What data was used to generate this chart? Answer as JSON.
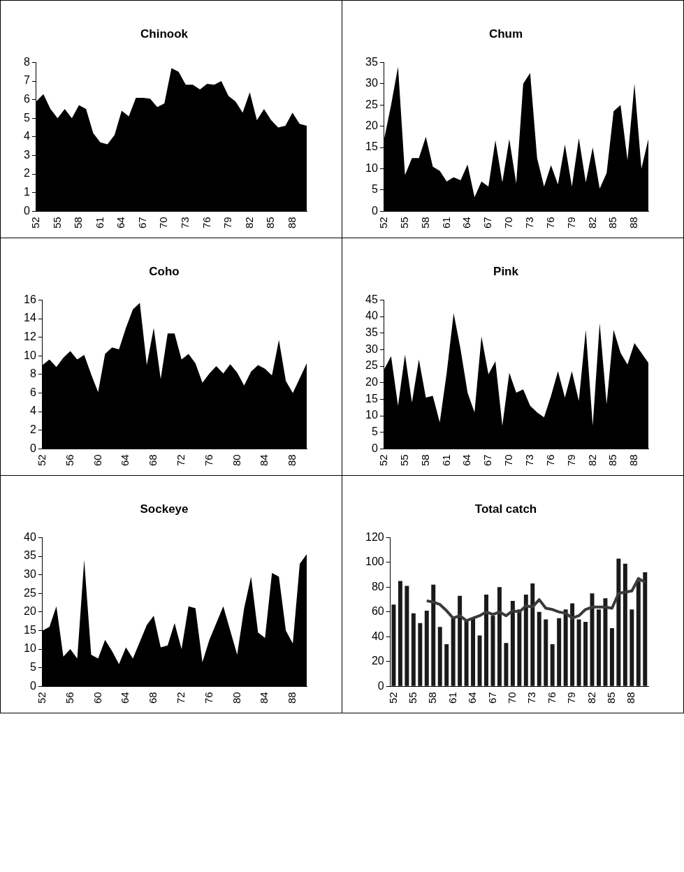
{
  "chart_data": [
    {
      "type": "area",
      "title": "Chinook",
      "categories": [
        "52",
        null,
        null,
        "55",
        null,
        null,
        "58",
        null,
        null,
        "61",
        null,
        null,
        "64",
        null,
        null,
        "67",
        null,
        null,
        "70",
        null,
        null,
        "73",
        null,
        null,
        "76",
        null,
        null,
        "79",
        null,
        null,
        "82",
        null,
        null,
        "85",
        null,
        null,
        "88",
        null,
        null
      ],
      "color": "#000000",
      "grid": false,
      "legend": false,
      "marker": "none",
      "values": [
        5.9,
        6.3,
        5.5,
        5.0,
        5.5,
        5.0,
        5.7,
        5.5,
        4.2,
        3.7,
        3.6,
        4.1,
        5.4,
        5.1,
        6.1,
        6.1,
        6.05,
        5.6,
        5.8,
        7.7,
        7.5,
        6.8,
        6.8,
        6.55,
        6.85,
        6.8,
        7.0,
        6.2,
        5.9,
        5.3,
        6.4,
        4.9,
        5.5,
        4.9,
        4.5,
        4.6,
        5.3,
        4.7,
        4.6
      ],
      "ylim": [
        0,
        8
      ],
      "yticks": [
        0,
        1,
        2,
        3,
        4,
        5,
        6,
        7,
        8
      ]
    },
    {
      "type": "area",
      "title": "Chum",
      "categories": [
        "52",
        null,
        null,
        "55",
        null,
        null,
        "58",
        null,
        null,
        "61",
        null,
        null,
        "64",
        null,
        null,
        "67",
        null,
        null,
        "70",
        null,
        null,
        "73",
        null,
        null,
        "76",
        null,
        null,
        "79",
        null,
        null,
        "82",
        null,
        null,
        "85",
        null,
        null,
        "88",
        null,
        null
      ],
      "color": "#000000",
      "grid": false,
      "legend": false,
      "marker": "none",
      "values": [
        17,
        25,
        34,
        8.5,
        12.5,
        12.5,
        17.5,
        10.5,
        9.5,
        7,
        8,
        7.3,
        11,
        3.3,
        7,
        5.8,
        16.7,
        6.8,
        17,
        6.5,
        30,
        32.5,
        12.5,
        5.8,
        10.8,
        6.3,
        15.7,
        5.8,
        17.2,
        6.8,
        15,
        5.3,
        9,
        23.5,
        25,
        12,
        30,
        10,
        17
      ],
      "ylim": [
        0,
        35
      ],
      "yticks": [
        0,
        5,
        10,
        15,
        20,
        25,
        30,
        35
      ]
    },
    {
      "type": "area",
      "title": "Coho",
      "categories": [
        "52",
        null,
        null,
        null,
        "56",
        null,
        null,
        null,
        "60",
        null,
        null,
        null,
        "64",
        null,
        null,
        null,
        "68",
        null,
        null,
        null,
        "72",
        null,
        null,
        null,
        "76",
        null,
        null,
        null,
        "80",
        null,
        null,
        null,
        "84",
        null,
        null,
        null,
        "88",
        null,
        null
      ],
      "color": "#000000",
      "grid": false,
      "legend": false,
      "marker": "none",
      "values": [
        9,
        9.6,
        8.8,
        9.8,
        10.5,
        9.6,
        10.1,
        8,
        6.1,
        10.2,
        10.9,
        10.7,
        13,
        15,
        15.7,
        9,
        13,
        7.5,
        12.4,
        12.4,
        9.6,
        10.2,
        9.2,
        7.1,
        8.1,
        8.9,
        8.1,
        9.1,
        8.2,
        6.8,
        8.3,
        9,
        8.6,
        7.9,
        11.7,
        7.3,
        6,
        7.6,
        9.2
      ],
      "ylim": [
        0,
        16
      ],
      "yticks": [
        0,
        2,
        4,
        6,
        8,
        10,
        12,
        14,
        16
      ]
    },
    {
      "type": "area",
      "title": "Pink",
      "categories": [
        "52",
        null,
        null,
        "55",
        null,
        null,
        "58",
        null,
        null,
        "61",
        null,
        null,
        "64",
        null,
        null,
        "67",
        null,
        null,
        "70",
        null,
        null,
        "73",
        null,
        null,
        "76",
        null,
        null,
        "79",
        null,
        null,
        "82",
        null,
        null,
        "85",
        null,
        null,
        "88",
        null,
        null
      ],
      "color": "#000000",
      "grid": false,
      "legend": false,
      "marker": "none",
      "values": [
        24,
        28,
        13,
        28.5,
        14,
        27,
        15.5,
        16,
        8,
        23,
        41,
        30,
        17,
        11,
        34,
        22.5,
        26.5,
        7,
        23,
        17,
        18,
        13,
        11,
        9.5,
        16,
        23.5,
        15.5,
        23.5,
        14.5,
        36,
        7,
        38,
        13.5,
        36,
        29,
        25.5,
        32,
        29,
        26
      ],
      "ylim": [
        0,
        45
      ],
      "yticks": [
        0,
        5,
        10,
        15,
        20,
        25,
        30,
        35,
        40,
        45
      ]
    },
    {
      "type": "area",
      "title": "Sockeye",
      "categories": [
        "52",
        null,
        null,
        null,
        "56",
        null,
        null,
        null,
        "60",
        null,
        null,
        null,
        "64",
        null,
        null,
        null,
        "68",
        null,
        null,
        null,
        "72",
        null,
        null,
        null,
        "76",
        null,
        null,
        null,
        "80",
        null,
        null,
        null,
        "84",
        null,
        null,
        null,
        "88",
        null,
        null
      ],
      "color": "#000000",
      "grid": false,
      "legend": false,
      "marker": "none",
      "values": [
        15,
        16,
        21.5,
        8,
        10,
        7.5,
        34,
        8.5,
        7.5,
        12.5,
        9.5,
        6,
        10.5,
        7.5,
        12,
        16.5,
        19,
        10.5,
        11,
        17,
        10,
        21.5,
        21,
        6.5,
        12.5,
        17,
        21.5,
        15,
        8.5,
        21,
        29.5,
        14.5,
        13,
        30.5,
        29.5,
        15,
        11.5,
        33,
        35.5
      ],
      "ylim": [
        0,
        40
      ],
      "yticks": [
        0,
        5,
        10,
        15,
        20,
        25,
        30,
        35,
        40
      ]
    },
    {
      "type": "bar",
      "title": "Total catch",
      "categories": [
        "52",
        null,
        null,
        "55",
        null,
        null,
        "58",
        null,
        null,
        "61",
        null,
        null,
        "64",
        null,
        null,
        "67",
        null,
        null,
        "70",
        null,
        null,
        "73",
        null,
        null,
        "76",
        null,
        null,
        "79",
        null,
        null,
        "82",
        null,
        null,
        "85",
        null,
        null,
        "88",
        null,
        null
      ],
      "grid": false,
      "legend": false,
      "marker": "none",
      "series": [
        {
          "type": "bar",
          "color": "#1a1a1a",
          "values": [
            66,
            85,
            81,
            59,
            51,
            61,
            82,
            48,
            34,
            55,
            73,
            53,
            55,
            41,
            74,
            57,
            80,
            35,
            69,
            62,
            74,
            83,
            60,
            54,
            34,
            55,
            62,
            67,
            54,
            52,
            75,
            62,
            71,
            47,
            103,
            99,
            62,
            85,
            92
          ]
        },
        {
          "type": "line",
          "color": "#3a3a3a",
          "values": [
            null,
            null,
            null,
            null,
            null,
            69,
            68,
            66,
            61,
            55,
            57,
            53,
            55,
            57,
            60,
            58,
            60,
            57,
            61,
            60,
            65,
            64,
            70,
            63,
            62,
            60,
            59,
            55,
            57,
            62,
            64,
            64,
            64,
            63,
            75,
            76,
            77,
            87,
            84
          ]
        }
      ],
      "ylim": [
        0,
        120
      ],
      "yticks": [
        0,
        20,
        40,
        60,
        80,
        100,
        120
      ]
    }
  ]
}
